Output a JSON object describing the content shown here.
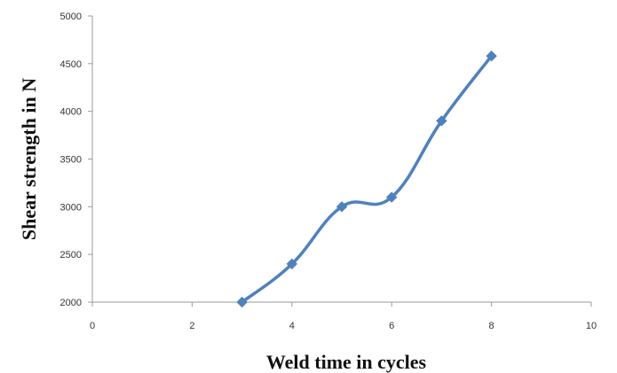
{
  "chart_data": {
    "type": "line",
    "title": "",
    "xlabel": "Weld time in cycles",
    "ylabel": "Shear strength in N",
    "xlim": [
      0,
      10
    ],
    "ylim": [
      2000,
      5000
    ],
    "x_ticks": [
      "0",
      "2",
      "4",
      "6",
      "8",
      "10"
    ],
    "y_ticks": [
      "2000",
      "2500",
      "3000",
      "3500",
      "4000",
      "4500",
      "5000"
    ],
    "grid": false,
    "legend": "none",
    "series": [
      {
        "color": "#4f81bd",
        "marker": "diamond",
        "smooth": true,
        "x": [
          3,
          4,
          5,
          6,
          7,
          8
        ],
        "y": [
          2000,
          2400,
          3000,
          3100,
          3900,
          4580
        ]
      }
    ]
  }
}
